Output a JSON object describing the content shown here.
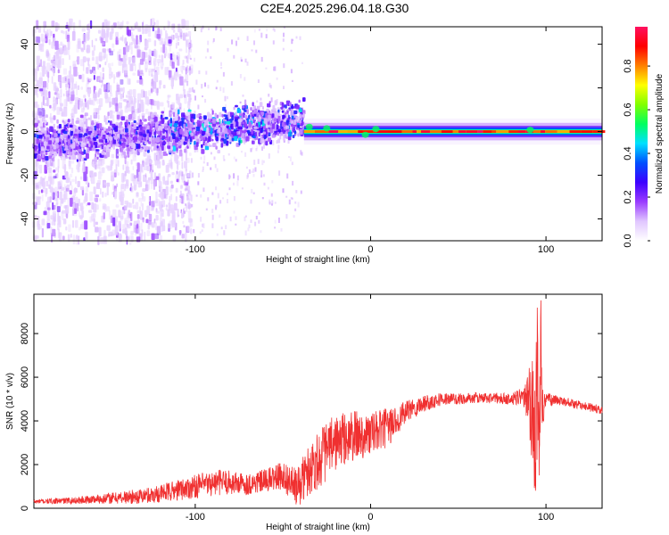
{
  "page": {
    "title": "C2E4.2025.296.04.18.G30"
  },
  "chart_data": [
    {
      "type": "heatmap",
      "title": "C2E4.2025.296.04.18.G30",
      "xlabel": "Height of straight line (km)",
      "ylabel": "Frequency (Hz)",
      "xlim": [
        -192,
        132
      ],
      "ylim": [
        -50,
        48
      ],
      "xticks": [
        -100,
        0,
        100
      ],
      "yticks": [
        -40,
        -20,
        0,
        20,
        40
      ],
      "colorbar": {
        "label": "Normalized spectral amplitude",
        "range": [
          0,
          0.98
        ],
        "ticks": [
          0.0,
          0.2,
          0.4,
          0.6,
          0.8
        ],
        "colormap": [
          "#ffffff",
          "#e0c6ff",
          "#9a3cff",
          "#3c00ff",
          "#0050ff",
          "#00e0ff",
          "#00ff60",
          "#80ff00",
          "#ffff00",
          "#ff8000",
          "#ff0000",
          "#ff1060"
        ]
      },
      "regions": [
        {
          "x_range": [
            -192,
            -110
          ],
          "description": "scattered noise",
          "amplitude": [
            0.0,
            0.25
          ],
          "freq_spread_hz": 50
        },
        {
          "x_range": [
            -110,
            -38
          ],
          "description": "broadband",
          "amplitude": [
            0.05,
            0.45
          ],
          "freq_spread_hz": 10,
          "center_hz": [
            0,
            5
          ]
        },
        {
          "x_range": [
            -38,
            132
          ],
          "description": "narrow carrier line",
          "amplitude": [
            0.2,
            0.98
          ],
          "freq_spread_hz": 3,
          "center_hz": 0
        }
      ]
    },
    {
      "type": "line",
      "xlabel": "Height of straight line (km)",
      "ylabel": "SNR (10 * v/v)",
      "xlim": [
        -192,
        132
      ],
      "ylim": [
        0,
        9800
      ],
      "xticks": [
        -100,
        0,
        100
      ],
      "yticks": [
        0,
        2000,
        4000,
        6000,
        8000
      ],
      "color": "#f03030",
      "series": [
        {
          "name": "SNR",
          "x": [
            -192,
            -170,
            -150,
            -130,
            -115,
            -100,
            -85,
            -70,
            -60,
            -50,
            -42,
            -35,
            -28,
            -20,
            -10,
            0,
            10,
            20,
            30,
            40,
            50,
            60,
            70,
            80,
            88,
            92,
            94,
            95,
            96,
            97,
            98,
            100,
            110,
            120,
            132
          ],
          "y": [
            300,
            350,
            450,
            550,
            750,
            1000,
            1200,
            1100,
            1250,
            1500,
            900,
            1800,
            2400,
            3000,
            3300,
            3400,
            3700,
            4400,
            4800,
            5000,
            5000,
            5050,
            5050,
            5000,
            5100,
            4500,
            3000,
            6000,
            2500,
            7000,
            4500,
            5000,
            4900,
            4700,
            4500
          ],
          "noise_amplitude": [
            100,
            150,
            250,
            350,
            450,
            550,
            600,
            500,
            550,
            650,
            900,
            1200,
            1400,
            1300,
            1200,
            1000,
            900,
            500,
            400,
            300,
            250,
            250,
            250,
            250,
            500,
            2500,
            3500,
            3500,
            3500,
            3000,
            1200,
            300,
            200,
            200,
            200
          ]
        }
      ]
    }
  ]
}
